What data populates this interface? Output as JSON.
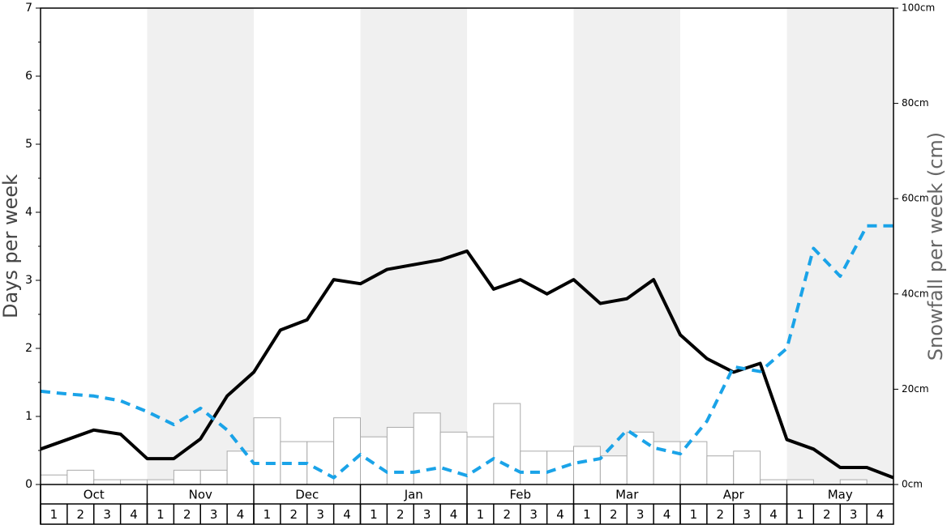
{
  "chart_data": {
    "type": "bar-line",
    "y_label": "Days per week",
    "y2_label": "Snowfall per week (cm)",
    "groups": [
      "Oct",
      "Nov",
      "Dec",
      "Jan",
      "Feb",
      "Mar",
      "Apr",
      "May"
    ],
    "shaded_groups": [
      false,
      true,
      false,
      true,
      false,
      true,
      false,
      true
    ],
    "categories": [
      "1",
      "2",
      "3",
      "4",
      "1",
      "2",
      "3",
      "4",
      "1",
      "2",
      "3",
      "4",
      "1",
      "2",
      "3",
      "4",
      "1",
      "2",
      "3",
      "4",
      "1",
      "2",
      "3",
      "4",
      "1",
      "2",
      "3",
      "4",
      "1",
      "2",
      "3",
      "4"
    ],
    "x": [
      0,
      1,
      2,
      3,
      4,
      5,
      6,
      7,
      8,
      9,
      10,
      11,
      12,
      13,
      14,
      15,
      16,
      17,
      18,
      19,
      20,
      21,
      22,
      23,
      24,
      25,
      26,
      27,
      28,
      29,
      30,
      31,
      32
    ],
    "xlim": [
      0,
      32
    ],
    "series": [
      {
        "type": "bar",
        "axis": "y2",
        "color": "#ffffff",
        "edge_color": "#aaaaaa",
        "values": [
          2,
          3,
          1,
          1,
          1,
          3,
          3,
          7,
          14,
          9,
          9,
          14,
          10,
          12,
          15,
          11,
          10,
          17,
          7,
          7,
          8,
          6,
          11,
          9,
          9,
          6,
          7,
          1,
          1,
          0,
          1,
          0
        ]
      },
      {
        "type": "line",
        "color": "#000000",
        "dashed": false,
        "values": [
          0.52,
          0.66,
          0.8,
          0.74,
          0.38,
          0.38,
          0.67,
          1.3,
          1.65,
          2.27,
          2.42,
          3.01,
          2.95,
          3.16,
          3.23,
          3.3,
          3.43,
          2.87,
          3.01,
          2.8,
          3.01,
          2.66,
          2.73,
          3.01,
          2.2,
          1.85,
          1.65,
          1.78,
          0.66,
          0.52,
          0.25,
          0.25,
          0.1
        ]
      },
      {
        "type": "line",
        "color": "#1aa3e8",
        "dashed": true,
        "values": [
          1.37,
          1.33,
          1.3,
          1.23,
          1.07,
          0.88,
          1.12,
          0.8,
          0.31,
          0.31,
          0.31,
          0.1,
          0.44,
          0.18,
          0.18,
          0.25,
          0.13,
          0.38,
          0.18,
          0.18,
          0.31,
          0.38,
          0.8,
          0.54,
          0.45,
          0.93,
          1.73,
          1.66,
          2.0,
          3.47,
          3.06,
          3.8,
          3.8
        ]
      }
    ],
    "ylim": [
      0,
      7
    ],
    "yticks": [
      0,
      1,
      2,
      3,
      4,
      5,
      6,
      7
    ],
    "yminorticks": [
      0.5,
      1.5,
      2.5,
      3.5,
      4.5,
      5.5,
      6.5
    ],
    "y2lim": [
      0,
      100
    ],
    "y2ticks": [
      {
        "value": 0,
        "label": "0cm"
      },
      {
        "value": 20,
        "label": "20cm"
      },
      {
        "value": 40,
        "label": "40cm"
      },
      {
        "value": 60,
        "label": "60cm"
      },
      {
        "value": 80,
        "label": "80cm"
      },
      {
        "value": 100,
        "label": "100cm"
      }
    ]
  }
}
